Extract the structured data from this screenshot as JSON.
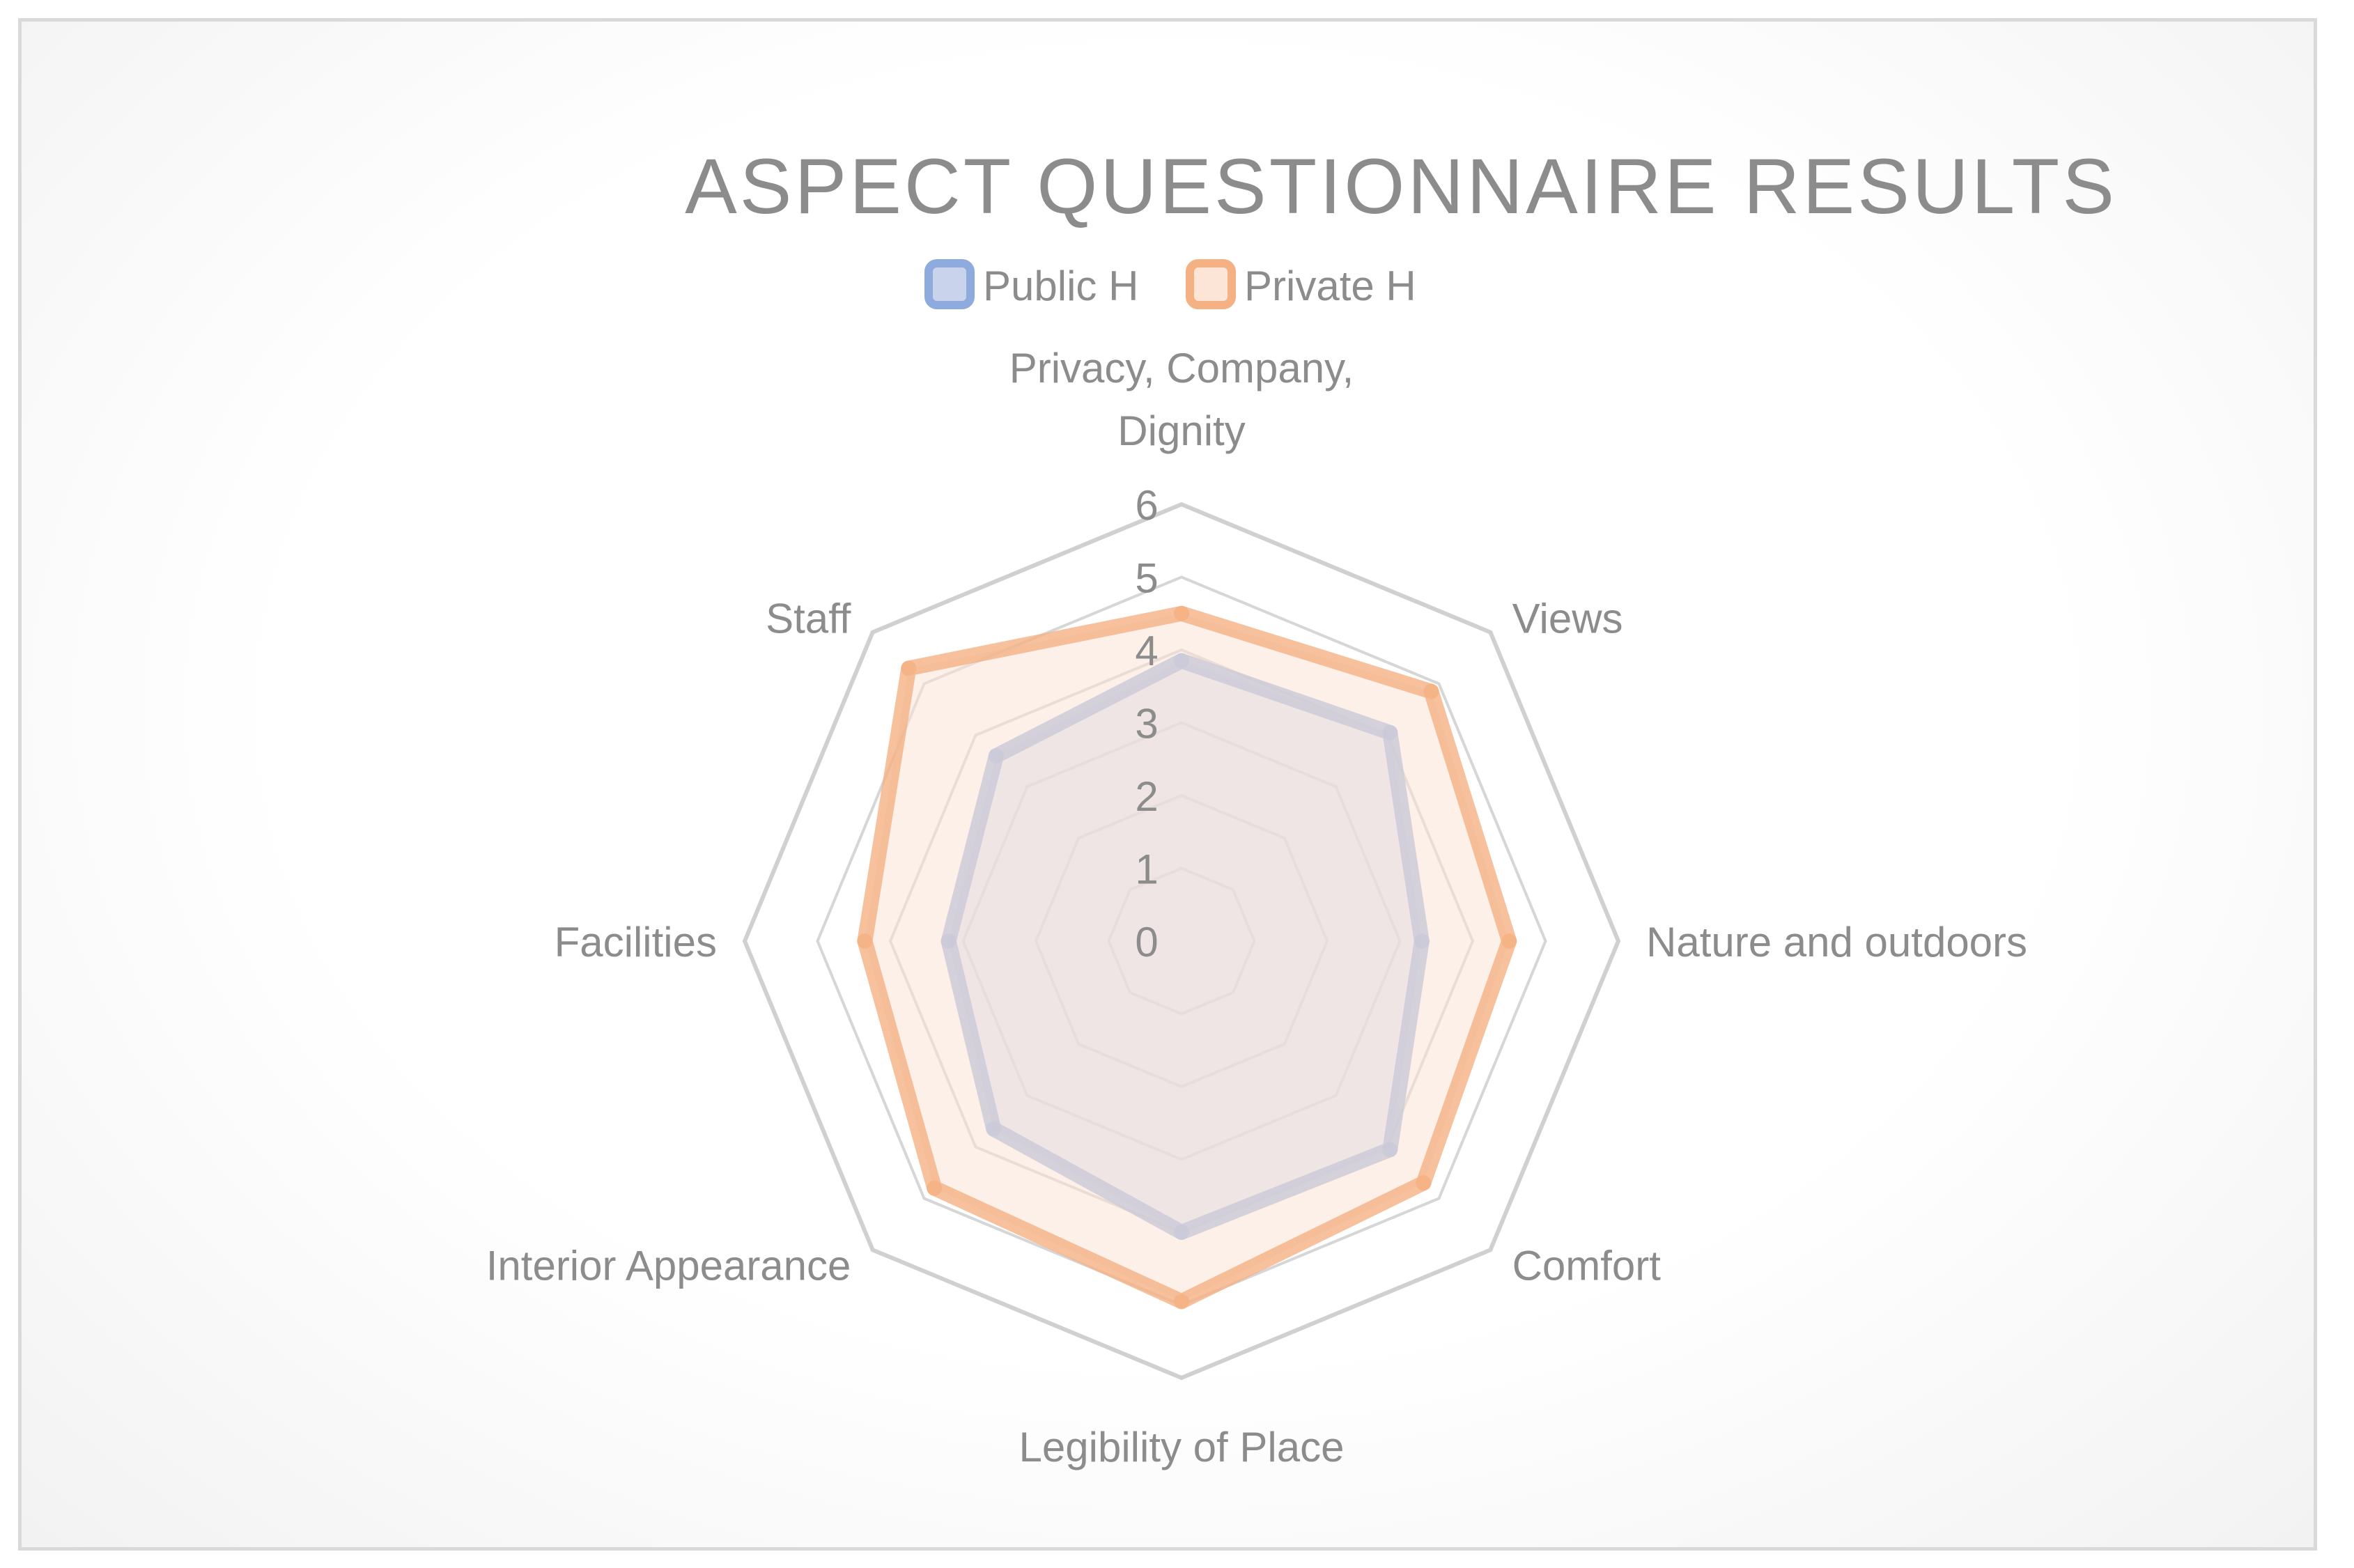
{
  "chart_data": {
    "type": "radar",
    "title": "ASPECT QUESTIONNAIRE RESULTS",
    "categories": [
      "Privacy, Company, Dignity",
      "Views",
      "Nature and outdoors",
      "Comfort",
      "Legibility of Place",
      "Interior Appearance",
      "Facilities",
      "Staff"
    ],
    "category_lines": [
      [
        "Privacy, Company,",
        "Dignity"
      ],
      [
        "Views"
      ],
      [
        "Nature and outdoors"
      ],
      [
        "Comfort"
      ],
      [
        "Legibility of Place"
      ],
      [
        "Interior Appearance"
      ],
      [
        "Facilities"
      ],
      [
        "Staff"
      ]
    ],
    "ylim": [
      0,
      6
    ],
    "ticks": [
      "0",
      "1",
      "2",
      "3",
      "4",
      "5",
      "6"
    ],
    "series": [
      {
        "name": "Public H",
        "values": [
          3.85,
          4.05,
          3.3,
          4.05,
          4.0,
          3.65,
          3.2,
          3.6
        ],
        "color": "#8faadc",
        "fill": "#c9d4ec"
      },
      {
        "name": "Private H",
        "values": [
          4.5,
          4.85,
          4.5,
          4.7,
          4.95,
          4.8,
          4.35,
          5.3
        ],
        "color": "#f4b183",
        "fill": "#fce4d6"
      }
    ],
    "legend_position": "top",
    "grid": true
  }
}
